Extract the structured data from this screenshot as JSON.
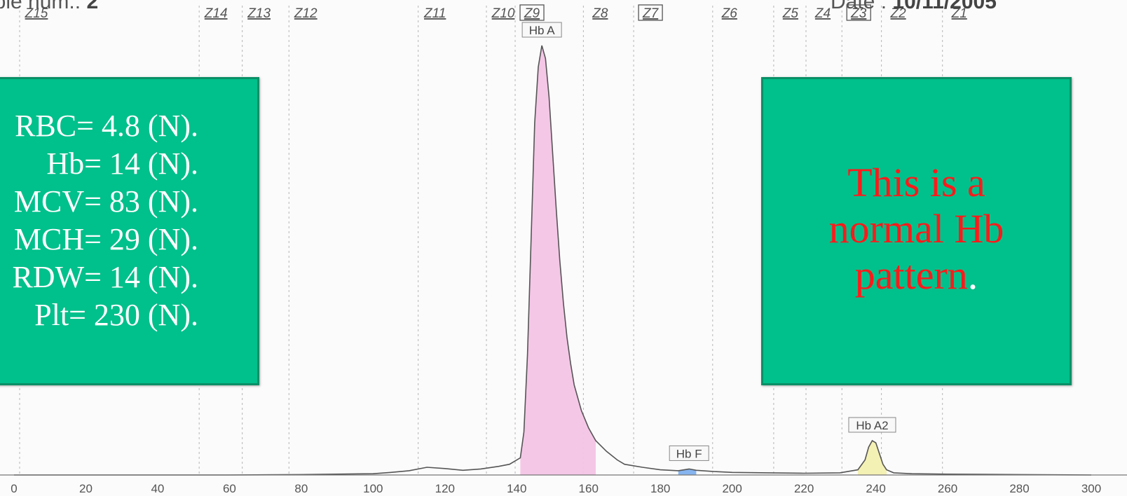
{
  "header": {
    "sample_label": "Sample num.:",
    "sample_value": "2",
    "date_label": "Date :",
    "date_value": "10/11/2005"
  },
  "cbc_panel": {
    "lines": [
      "RBC= 4.8 (N).",
      "Hb= 14 (N).",
      "MCV= 83 (N).",
      "MCH= 29 (N).",
      "RDW= 14 (N).",
      "Plt= 230 (N)."
    ]
  },
  "note_panel": {
    "line1": "This is a",
    "line2": "normal Hb",
    "line3": "pattern",
    "period": "."
  },
  "colors": {
    "panel_fill": "#00c08b",
    "panel_border": "#0a8f66",
    "note_text": "#ff1a1a",
    "hb_a_fill": "#f4c4e6",
    "hb_f_fill": "#7fb0ee",
    "hb_a2_fill": "#f3f0b0",
    "trace": "#555555"
  },
  "chart_data": {
    "type": "line",
    "title": "",
    "xlabel": "",
    "ylabel": "",
    "xlim": [
      0,
      300
    ],
    "ylim": [
      0,
      100
    ],
    "grid": true,
    "x_ticks": [
      0,
      20,
      40,
      60,
      80,
      100,
      120,
      140,
      160,
      180,
      200,
      220,
      240,
      260,
      280,
      300
    ],
    "zones": [
      {
        "label": "Z15",
        "boxed": false,
        "x": 0
      },
      {
        "label": "Z14",
        "boxed": false,
        "x": 50
      },
      {
        "label": "Z13",
        "boxed": false,
        "x": 62
      },
      {
        "label": "Z12",
        "boxed": false,
        "x": 75
      },
      {
        "label": "Z11",
        "boxed": false,
        "x": 111
      },
      {
        "label": "Z10",
        "boxed": false,
        "x": 130
      },
      {
        "label": "Z9",
        "boxed": true,
        "x": 138
      },
      {
        "label": "Z8",
        "boxed": false,
        "x": 157
      },
      {
        "label": "Z7",
        "boxed": true,
        "x": 171
      },
      {
        "label": "Z6",
        "boxed": false,
        "x": 193
      },
      {
        "label": "Z5",
        "boxed": false,
        "x": 210
      },
      {
        "label": "Z4",
        "boxed": false,
        "x": 219
      },
      {
        "label": "Z3",
        "boxed": true,
        "x": 229
      },
      {
        "label": "Z2",
        "boxed": false,
        "x": 240
      },
      {
        "label": "Z1",
        "boxed": false,
        "x": 257
      }
    ],
    "series": [
      {
        "x": [
          0,
          20,
          40,
          60,
          80,
          100,
          105,
          110,
          115,
          120,
          125,
          130,
          135,
          138,
          141,
          142,
          143,
          144,
          145,
          146,
          147,
          148,
          149,
          150,
          151,
          152,
          153,
          154,
          155,
          156,
          158,
          160,
          162,
          165,
          168,
          170,
          175,
          180,
          185,
          188,
          190,
          195,
          200,
          210,
          220,
          230,
          235,
          237,
          238,
          239,
          240,
          241,
          242,
          243,
          245,
          250,
          260,
          280,
          300
        ],
        "y": [
          0,
          0,
          0,
          0,
          0.1,
          0.3,
          0.6,
          1.0,
          1.8,
          1.5,
          1.1,
          1.4,
          2.0,
          2.5,
          4,
          10,
          28,
          55,
          82,
          95,
          100,
          97,
          88,
          75,
          62,
          50,
          40,
          32,
          26,
          21,
          15,
          11,
          8,
          5.5,
          3.5,
          2.5,
          1.8,
          1.2,
          1.0,
          1.4,
          1.1,
          0.8,
          0.6,
          0.5,
          0.4,
          0.5,
          1.2,
          3.5,
          6.5,
          8.0,
          7.5,
          5.0,
          2.5,
          1.2,
          0.5,
          0.3,
          0.2,
          0.1,
          0
        ]
      }
    ],
    "peaks": [
      {
        "name": "Hb A",
        "x": 147,
        "x_range": [
          141,
          162
        ]
      },
      {
        "name": "Hb F",
        "x": 188,
        "x_range": [
          184,
          193
        ]
      },
      {
        "name": "Hb A2",
        "x": 239,
        "x_range": [
          235,
          244
        ]
      }
    ]
  }
}
